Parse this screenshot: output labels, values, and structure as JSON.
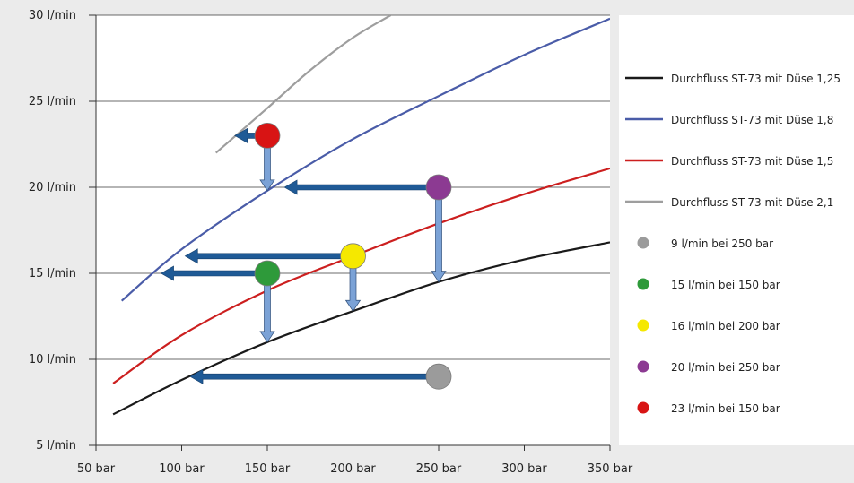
{
  "chart_data": {
    "type": "line",
    "title": "",
    "xlabel": "",
    "ylabel": "",
    "xlim": [
      50,
      350
    ],
    "ylim": [
      5,
      30
    ],
    "grid": "horizontal",
    "legend_position": "right",
    "x_ticks": [
      {
        "value": 50,
        "label": "50 bar"
      },
      {
        "value": 100,
        "label": "100 bar"
      },
      {
        "value": 150,
        "label": "150 bar"
      },
      {
        "value": 200,
        "label": "200 bar"
      },
      {
        "value": 250,
        "label": "250 bar"
      },
      {
        "value": 300,
        "label": "300 bar"
      },
      {
        "value": 350,
        "label": "350 bar"
      }
    ],
    "y_ticks": [
      {
        "value": 5,
        "label": "5 l/min"
      },
      {
        "value": 10,
        "label": "10 l/min"
      },
      {
        "value": 15,
        "label": "15 l/min"
      },
      {
        "value": 20,
        "label": "20 l/min"
      },
      {
        "value": 25,
        "label": "25 l/min"
      },
      {
        "value": 30,
        "label": "30 l/min"
      }
    ],
    "series": [
      {
        "name": "Durchfluss ST-73 mit Düse 1,25",
        "color": "#1a1a1a",
        "points": [
          [
            60,
            6.8
          ],
          [
            100,
            8.8
          ],
          [
            150,
            11.0
          ],
          [
            200,
            12.8
          ],
          [
            250,
            14.5
          ],
          [
            300,
            15.8
          ],
          [
            350,
            16.8
          ]
        ]
      },
      {
        "name": "Durchfluss ST-73 mit Düse 1,8",
        "color": "#4a5ca8",
        "points": [
          [
            65,
            13.4
          ],
          [
            100,
            16.4
          ],
          [
            150,
            19.8
          ],
          [
            200,
            22.8
          ],
          [
            250,
            25.3
          ],
          [
            300,
            27.7
          ],
          [
            350,
            29.8
          ]
        ]
      },
      {
        "name": "Durchfluss ST-73 mit Düse 1,5",
        "color": "#cc1f1f",
        "points": [
          [
            60,
            8.6
          ],
          [
            100,
            11.4
          ],
          [
            150,
            14.0
          ],
          [
            200,
            16.0
          ],
          [
            250,
            17.9
          ],
          [
            300,
            19.6
          ],
          [
            350,
            21.1
          ]
        ]
      },
      {
        "name": "Durchfluss ST-73 mit Düse 2,1",
        "color": "#9e9e9e",
        "points": [
          [
            120,
            22.0
          ],
          [
            150,
            24.6
          ],
          [
            175,
            26.8
          ],
          [
            200,
            28.7
          ],
          [
            222,
            30.0
          ]
        ]
      }
    ],
    "markers": [
      {
        "name": "9 l/min bei 250 bar",
        "color": "#9b9b9b",
        "x": 250,
        "y": 9
      },
      {
        "name": "15 l/min bei 150 bar",
        "color": "#2e9a3a",
        "x": 150,
        "y": 15
      },
      {
        "name": "16 l/min bei 200 bar",
        "color": "#f5e800",
        "x": 200,
        "y": 16
      },
      {
        "name": "20 l/min bei 250 bar",
        "color": "#8c3a92",
        "x": 250,
        "y": 20
      },
      {
        "name": "23 l/min bei 150 bar",
        "color": "#d81414",
        "x": 150,
        "y": 23
      }
    ],
    "arrows": [
      {
        "dir": "left",
        "color": "#1f5a96",
        "from": [
          250,
          9
        ],
        "to": [
          105,
          9
        ]
      },
      {
        "dir": "left",
        "color": "#1f5a96",
        "from": [
          150,
          15
        ],
        "to": [
          88,
          15
        ]
      },
      {
        "dir": "left",
        "color": "#1f5a96",
        "from": [
          200,
          16
        ],
        "to": [
          102,
          16
        ]
      },
      {
        "dir": "left",
        "color": "#1f5a96",
        "from": [
          250,
          20
        ],
        "to": [
          160,
          20
        ]
      },
      {
        "dir": "left",
        "color": "#1f5a96",
        "from": [
          150,
          23
        ],
        "to": [
          131,
          23
        ]
      },
      {
        "dir": "down",
        "color": "#7ba2d6",
        "from": [
          150,
          15
        ],
        "to": [
          150,
          11.0
        ]
      },
      {
        "dir": "down",
        "color": "#7ba2d6",
        "from": [
          200,
          16
        ],
        "to": [
          200,
          12.8
        ]
      },
      {
        "dir": "down",
        "color": "#7ba2d6",
        "from": [
          250,
          20
        ],
        "to": [
          250,
          14.5
        ]
      },
      {
        "dir": "down",
        "color": "#7ba2d6",
        "from": [
          150,
          23
        ],
        "to": [
          150,
          19.8
        ]
      }
    ]
  }
}
